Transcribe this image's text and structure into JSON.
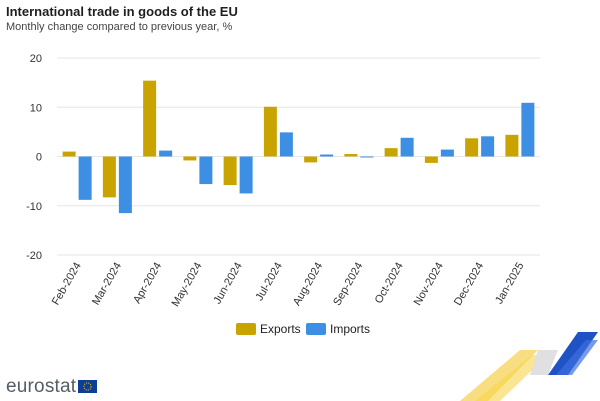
{
  "header": {
    "title": "International trade in goods of the EU",
    "subtitle": "Monthly change compared to previous year, %"
  },
  "brand": {
    "name": "eurostat",
    "flag_icon": "eu-flag-icon"
  },
  "colors": {
    "exports": "#c9a400",
    "imports": "#3d8fe3",
    "grid": "#e6e6e6",
    "accent_gold": "#f2c318",
    "accent_blue": "#1f52c5"
  },
  "chart_data": {
    "type": "bar",
    "title": "International trade in goods of the EU",
    "subtitle": "Monthly change compared to previous year, %",
    "categories": [
      "Feb-2024",
      "Mar-2024",
      "Apr-2024",
      "May-2024",
      "Jun-2024",
      "Jul-2024",
      "Aug-2024",
      "Sep-2024",
      "Oct-2024",
      "Nov-2024",
      "Dec-2024",
      "Jan-2025"
    ],
    "series": [
      {
        "name": "Exports",
        "values": [
          1.0,
          -8.3,
          15.4,
          -0.8,
          -5.8,
          10.1,
          -1.2,
          0.5,
          1.7,
          -1.3,
          3.7,
          4.4
        ]
      },
      {
        "name": "Imports",
        "values": [
          -8.8,
          -11.5,
          1.2,
          -5.6,
          -7.5,
          4.9,
          0.4,
          -0.2,
          3.8,
          1.4,
          4.1,
          10.9
        ]
      }
    ],
    "ylim": [
      -20,
      20
    ],
    "yticks": [
      20,
      10,
      0,
      -10,
      -20
    ],
    "xlabel": "",
    "ylabel": "",
    "grid": true,
    "legend": "bottom-center"
  }
}
